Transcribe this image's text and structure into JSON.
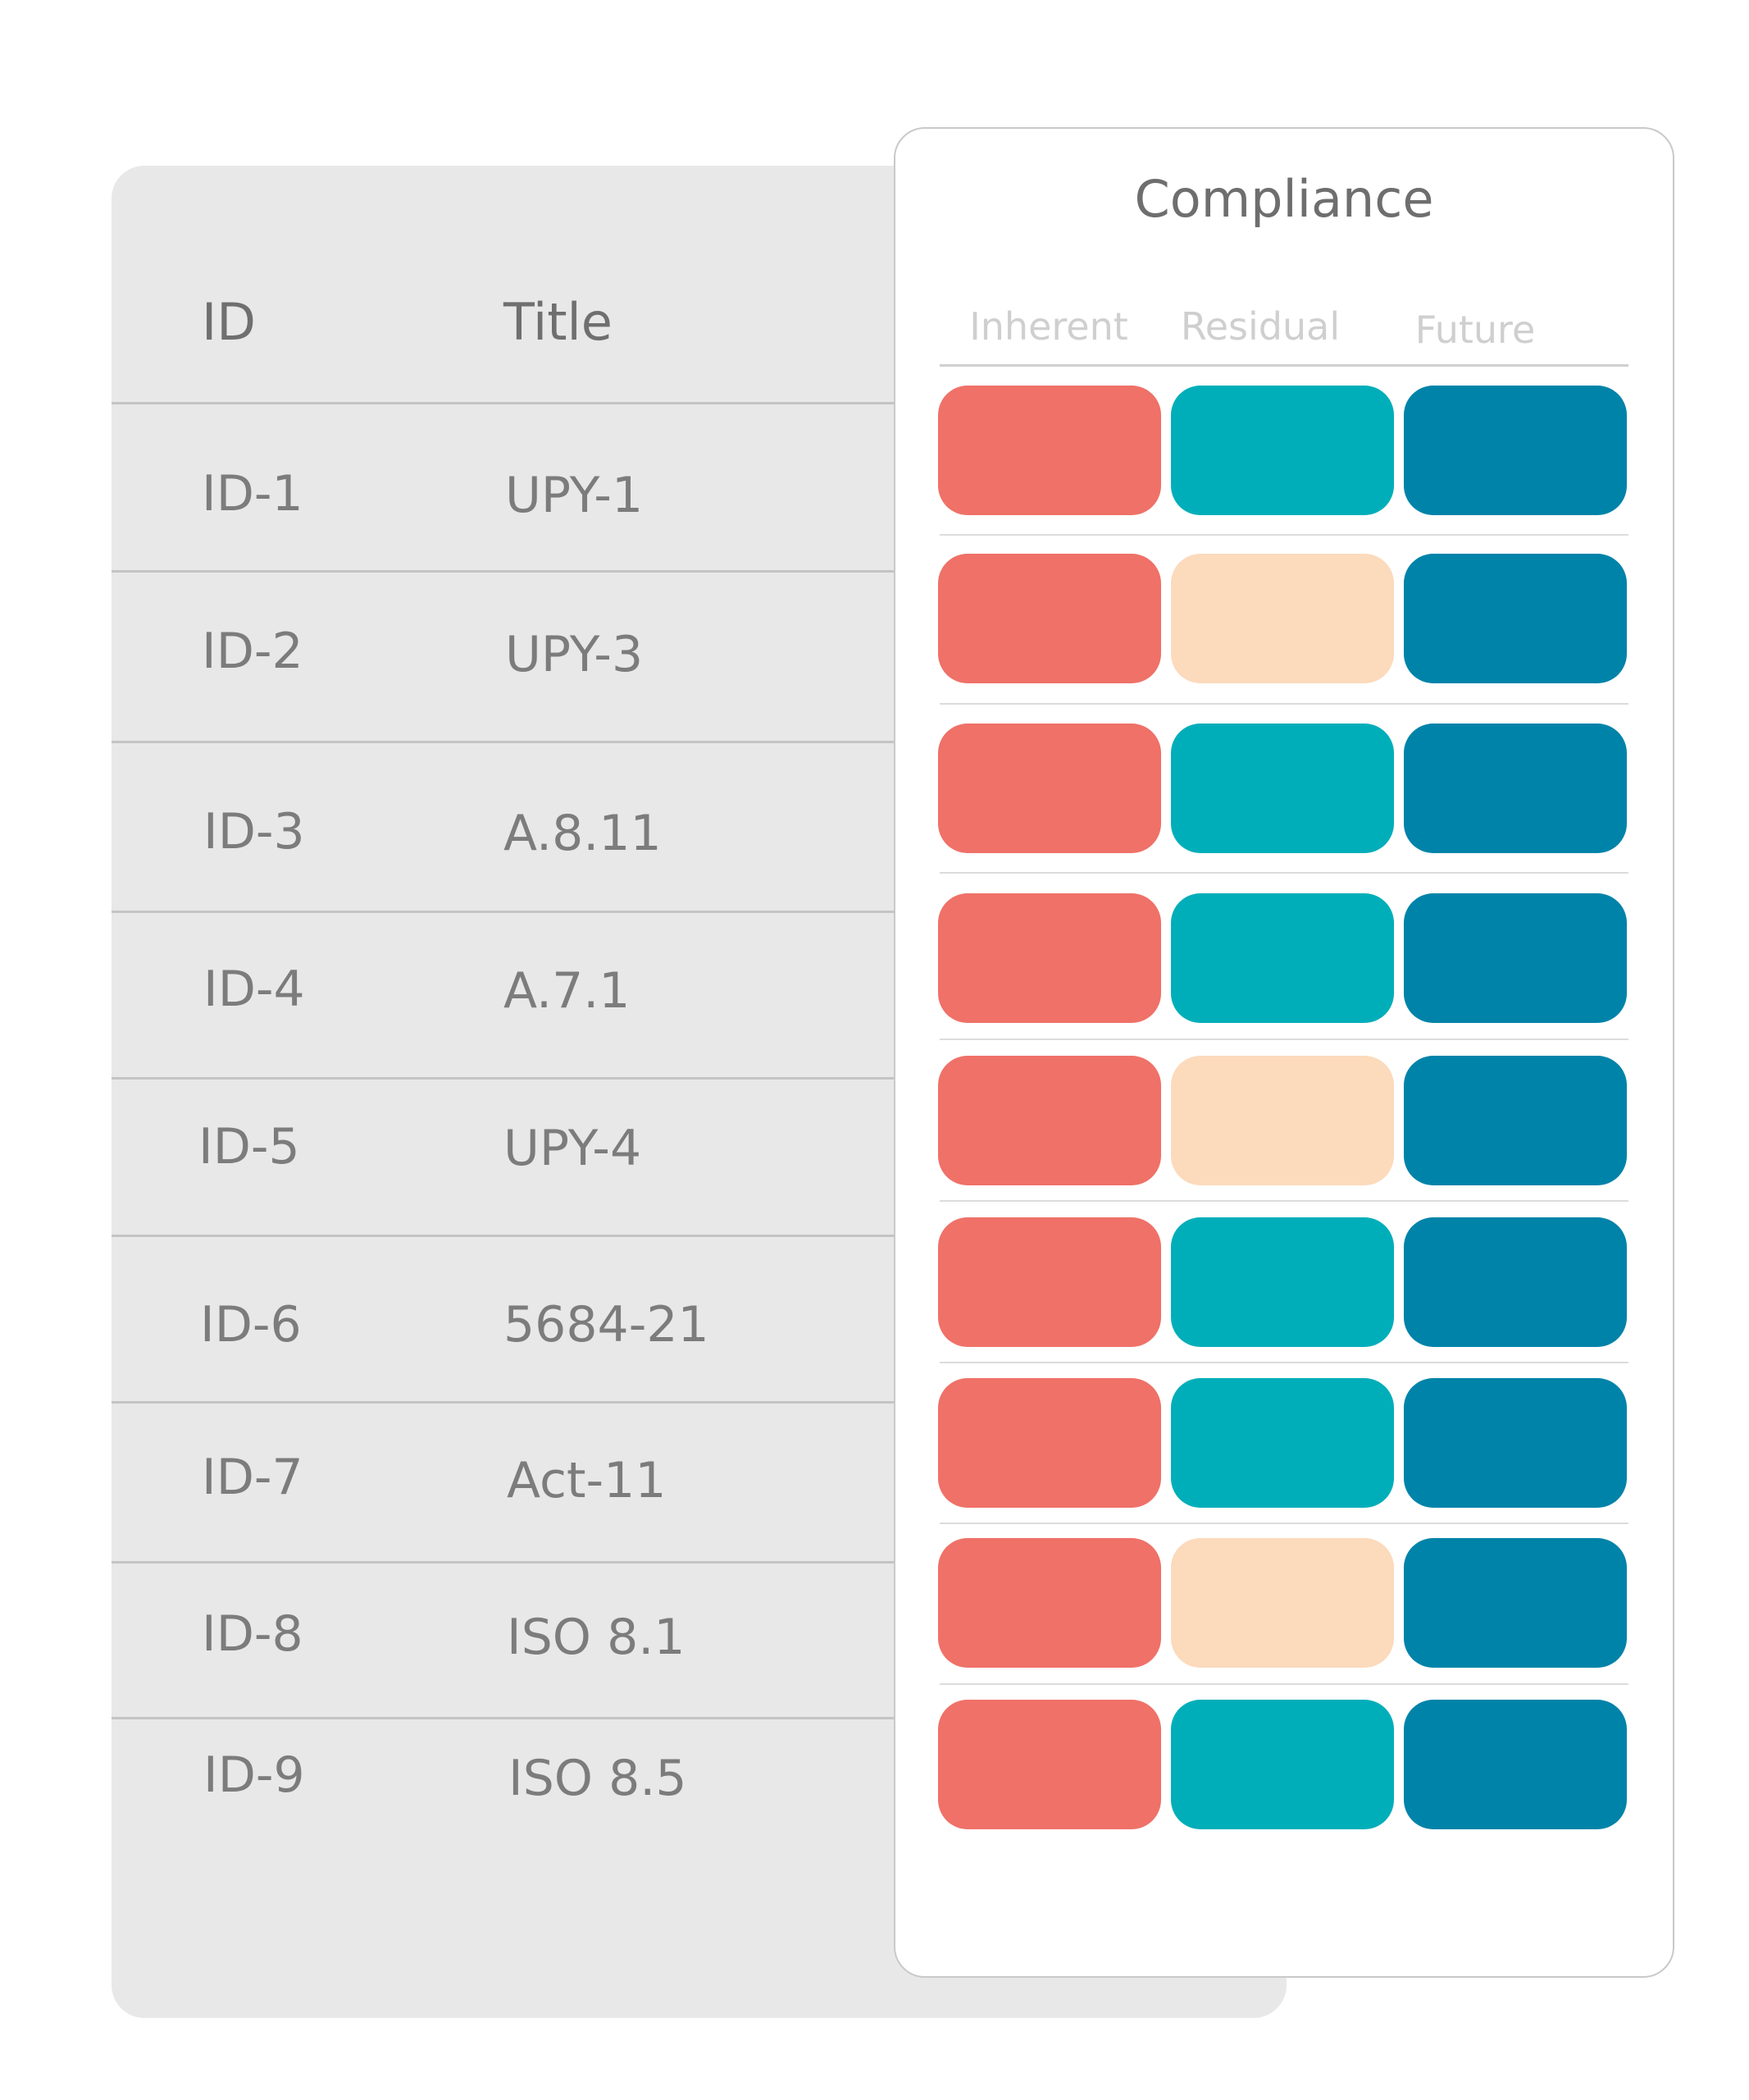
{
  "table": {
    "headers": {
      "id": "ID",
      "title": "Title"
    },
    "rows": [
      {
        "id": "ID-1",
        "title": "UPY-1"
      },
      {
        "id": "ID-2",
        "title": "UPY-3"
      },
      {
        "id": "ID-3",
        "title": "A.8.11"
      },
      {
        "id": "ID-4",
        "title": "A.7.1"
      },
      {
        "id": "ID-5",
        "title": "UPY-4"
      },
      {
        "id": "ID-6",
        "title": "5684-21"
      },
      {
        "id": "ID-7",
        "title": "Act-11"
      },
      {
        "id": "ID-8",
        "title": "ISO 8.1"
      },
      {
        "id": "ID-9",
        "title": "ISO 8.5"
      }
    ]
  },
  "compliance": {
    "title": "Compliance",
    "columns": [
      "Inherent",
      "Residual",
      "Future"
    ],
    "colors": {
      "red": "#ef7168",
      "teal": "#00aeb9",
      "peach": "#fcdabc",
      "blue": "#0083a9"
    },
    "rows": [
      [
        "red",
        "teal",
        "blue"
      ],
      [
        "red",
        "peach",
        "blue"
      ],
      [
        "red",
        "teal",
        "blue"
      ],
      [
        "red",
        "teal",
        "blue"
      ],
      [
        "red",
        "peach",
        "blue"
      ],
      [
        "red",
        "teal",
        "blue"
      ],
      [
        "red",
        "teal",
        "blue"
      ],
      [
        "red",
        "peach",
        "blue"
      ],
      [
        "red",
        "teal",
        "blue"
      ]
    ]
  }
}
